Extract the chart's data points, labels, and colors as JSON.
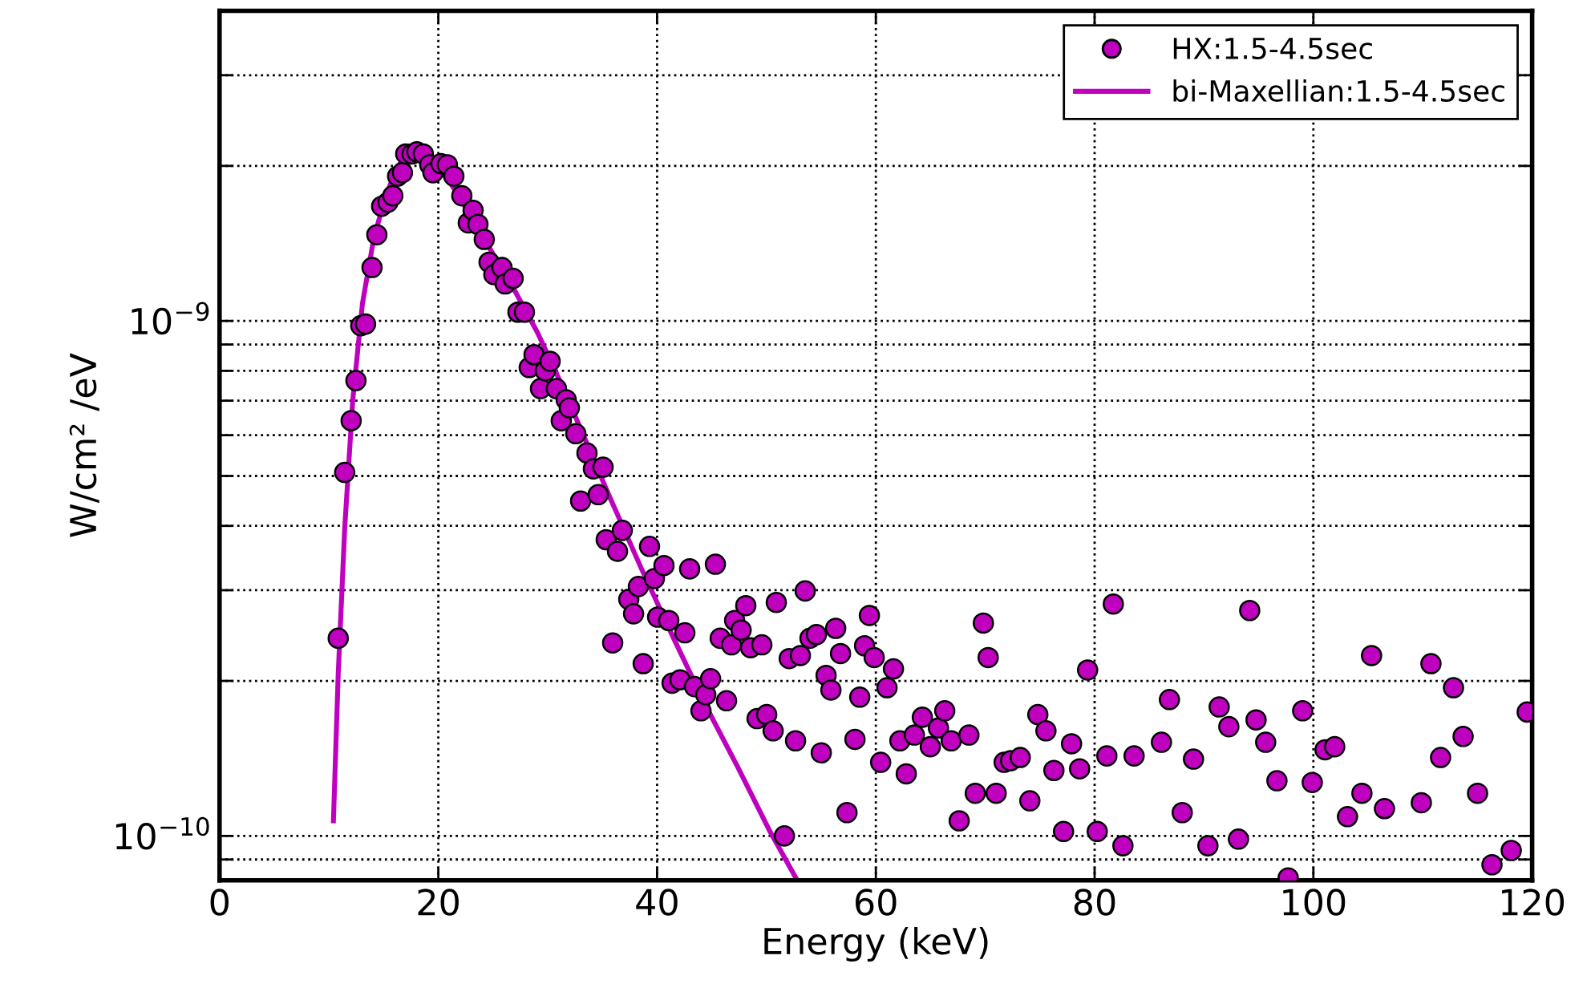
{
  "chart_data": {
    "type": "scatter",
    "xlabel": "Energy (keV)",
    "ylabel": "W/cm² /eV",
    "xlim": [
      0,
      120
    ],
    "xticks": [
      0,
      20,
      40,
      60,
      80,
      100,
      120
    ],
    "ylim": [
      8.2e-11,
      4e-09
    ],
    "log": "y",
    "yticks": [
      {
        "value": 9e-11,
        "label": null
      },
      {
        "value": 1e-10,
        "label": "10$^{−10}$"
      },
      {
        "value": 2e-10,
        "label": null
      },
      {
        "value": 3e-10,
        "label": null
      },
      {
        "value": 4e-10,
        "label": null
      },
      {
        "value": 5e-10,
        "label": null
      },
      {
        "value": 6e-10,
        "label": null
      },
      {
        "value": 7e-10,
        "label": null
      },
      {
        "value": 8e-10,
        "label": null
      },
      {
        "value": 9e-10,
        "label": null
      },
      {
        "value": 1e-09,
        "label": "10$^{−9}$"
      },
      {
        "value": 2e-09,
        "label": null
      },
      {
        "value": 3e-09,
        "label": null
      }
    ],
    "grid": true,
    "legend": "top right",
    "marker": "circle",
    "series": [
      {
        "name": "HX:1.5-4.5sec",
        "color": "#bf00bf",
        "x": [
          10.85,
          11.44,
          12.03,
          12.47,
          12.91,
          13.35,
          13.94,
          14.38,
          14.82,
          15.4,
          15.84,
          16.28,
          16.72,
          17.02,
          17.6,
          18.04,
          18.63,
          19.22,
          19.51,
          20.24,
          20.83,
          21.42,
          22.15,
          22.74,
          23.18,
          23.62,
          24.2,
          24.64,
          25.08,
          25.82,
          26.11,
          26.84,
          27.28,
          27.87,
          28.31,
          28.75,
          29.34,
          29.78,
          30.22,
          30.8,
          31.24,
          31.69,
          31.98,
          32.57,
          33.01,
          33.59,
          34.18,
          34.62,
          35.06,
          35.35,
          35.94,
          36.38,
          36.82,
          37.41,
          37.85,
          38.29,
          38.73,
          39.31,
          39.75,
          40.05,
          40.63,
          41.07,
          41.37,
          42.1,
          42.54,
          42.98,
          43.42,
          44.01,
          44.45,
          44.89,
          45.33,
          45.77,
          46.35,
          46.8,
          47.09,
          47.68,
          48.11,
          48.55,
          49.14,
          49.58,
          50.02,
          50.61,
          50.9,
          51.64,
          52.08,
          52.66,
          53.1,
          53.54,
          53.98,
          54.57,
          55.01,
          55.45,
          55.89,
          56.33,
          56.77,
          57.36,
          58.09,
          58.53,
          58.97,
          59.41,
          59.85,
          60.44,
          61.02,
          61.61,
          62.2,
          62.78,
          63.52,
          64.25,
          64.98,
          65.72,
          66.3,
          66.89,
          67.62,
          68.51,
          69.09,
          69.83,
          70.27,
          71.0,
          71.73,
          72.32,
          73.2,
          74.08,
          74.81,
          75.55,
          76.28,
          77.16,
          77.89,
          78.63,
          79.36,
          80.24,
          81.12,
          81.71,
          82.59,
          83.61,
          86.11,
          86.84,
          88.01,
          89.04,
          90.36,
          91.39,
          92.27,
          93.15,
          94.18,
          94.76,
          95.64,
          96.67,
          97.7,
          99.02,
          99.9,
          101.07,
          101.95,
          103.12,
          104.44,
          105.32,
          106.5,
          109.87,
          110.75,
          111.63,
          112.81,
          113.69,
          115.01,
          116.33,
          118.09,
          119.55
        ],
        "values": [
          2.42e-10,
          5.08e-10,
          6.4e-10,
          7.66e-10,
          9.79e-10,
          9.86e-10,
          1.27e-09,
          1.47e-09,
          1.67e-09,
          1.7e-09,
          1.75e-09,
          1.91e-09,
          1.94e-09,
          2.11e-09,
          2.11e-09,
          2.13e-09,
          2.11e-09,
          2.01e-09,
          1.94e-09,
          2.02e-09,
          2.01e-09,
          1.91e-09,
          1.75e-09,
          1.55e-09,
          1.64e-09,
          1.54e-09,
          1.44e-09,
          1.3e-09,
          1.23e-09,
          1.27e-09,
          1.18e-09,
          1.21e-09,
          1.04e-09,
          1.04e-09,
          8.12e-10,
          8.6e-10,
          7.39e-10,
          8e-10,
          8.35e-10,
          7.39e-10,
          6.4e-10,
          7.03e-10,
          6.78e-10,
          6.04e-10,
          4.47e-10,
          5.54e-10,
          5.16e-10,
          4.6e-10,
          5.2e-10,
          3.76e-10,
          2.37e-10,
          3.57e-10,
          3.92e-10,
          2.88e-10,
          2.7e-10,
          3.05e-10,
          2.16e-10,
          3.65e-10,
          3.16e-10,
          2.66e-10,
          3.35e-10,
          2.62e-10,
          1.98e-10,
          2.01e-10,
          2.48e-10,
          3.3e-10,
          1.95e-10,
          1.75e-10,
          1.88e-10,
          2.02e-10,
          3.37e-10,
          2.42e-10,
          1.83e-10,
          2.35e-10,
          2.62e-10,
          2.51e-10,
          2.8e-10,
          2.32e-10,
          1.69e-10,
          2.35e-10,
          1.72e-10,
          1.6e-10,
          2.84e-10,
          1e-10,
          2.21e-10,
          1.53e-10,
          2.24e-10,
          2.99e-10,
          2.42e-10,
          2.46e-10,
          1.45e-10,
          2.05e-10,
          1.92e-10,
          2.53e-10,
          2.26e-10,
          1.11e-10,
          1.54e-10,
          1.86e-10,
          2.34e-10,
          2.68e-10,
          2.22e-10,
          1.39e-10,
          1.94e-10,
          2.11e-10,
          1.53e-10,
          1.32e-10,
          1.57e-10,
          1.7e-10,
          1.49e-10,
          1.62e-10,
          1.75e-10,
          1.53e-10,
          1.07e-10,
          1.57e-10,
          1.21e-10,
          2.59e-10,
          2.22e-10,
          1.21e-10,
          1.39e-10,
          1.4e-10,
          1.42e-10,
          1.17e-10,
          1.72e-10,
          1.6e-10,
          1.34e-10,
          1.02e-10,
          1.51e-10,
          1.35e-10,
          2.1e-10,
          1.02e-10,
          1.43e-10,
          2.82e-10,
          9.57e-11,
          1.43e-10,
          1.52e-10,
          1.84e-10,
          1.11e-10,
          1.41e-10,
          9.57e-11,
          1.78e-10,
          1.63e-10,
          9.86e-11,
          2.74e-10,
          1.68e-10,
          1.52e-10,
          1.28e-10,
          8.29e-11,
          1.75e-10,
          1.27e-10,
          1.47e-10,
          1.49e-10,
          1.09e-10,
          1.21e-10,
          2.24e-10,
          1.13e-10,
          1.16e-10,
          2.16e-10,
          1.42e-10,
          1.94e-10,
          1.56e-10,
          1.21e-10,
          8.79e-11,
          9.37e-11,
          1.74e-10
        ]
      },
      {
        "name": "bi-Maxellian:1.5-4.5sec",
        "type": "line",
        "color": "#bf00bf",
        "marker": "none",
        "line_style": "solid",
        "x": [
          10.41,
          10.85,
          11.44,
          12.18,
          13.06,
          14.08,
          15.11,
          16.28,
          17.46,
          18.63,
          19.8,
          21.27,
          22.74,
          24.64,
          26.84,
          29.05,
          31.24,
          33.45,
          35.65,
          38.58,
          41.51,
          44.45,
          47.38,
          50.32,
          52.81
        ],
        "values": [
          1.07e-10,
          2.07e-10,
          3.95e-10,
          7.03e-10,
          1.08e-09,
          1.44e-09,
          1.73e-09,
          2e-09,
          2.11e-09,
          2.1e-09,
          2e-09,
          1.83e-09,
          1.63e-09,
          1.39e-09,
          1.16e-09,
          9.51e-10,
          7.55e-10,
          5.87e-10,
          4.56e-10,
          3.3e-10,
          2.42e-10,
          1.79e-10,
          1.36e-10,
          1.02e-10,
          8.2e-11
        ]
      }
    ]
  }
}
